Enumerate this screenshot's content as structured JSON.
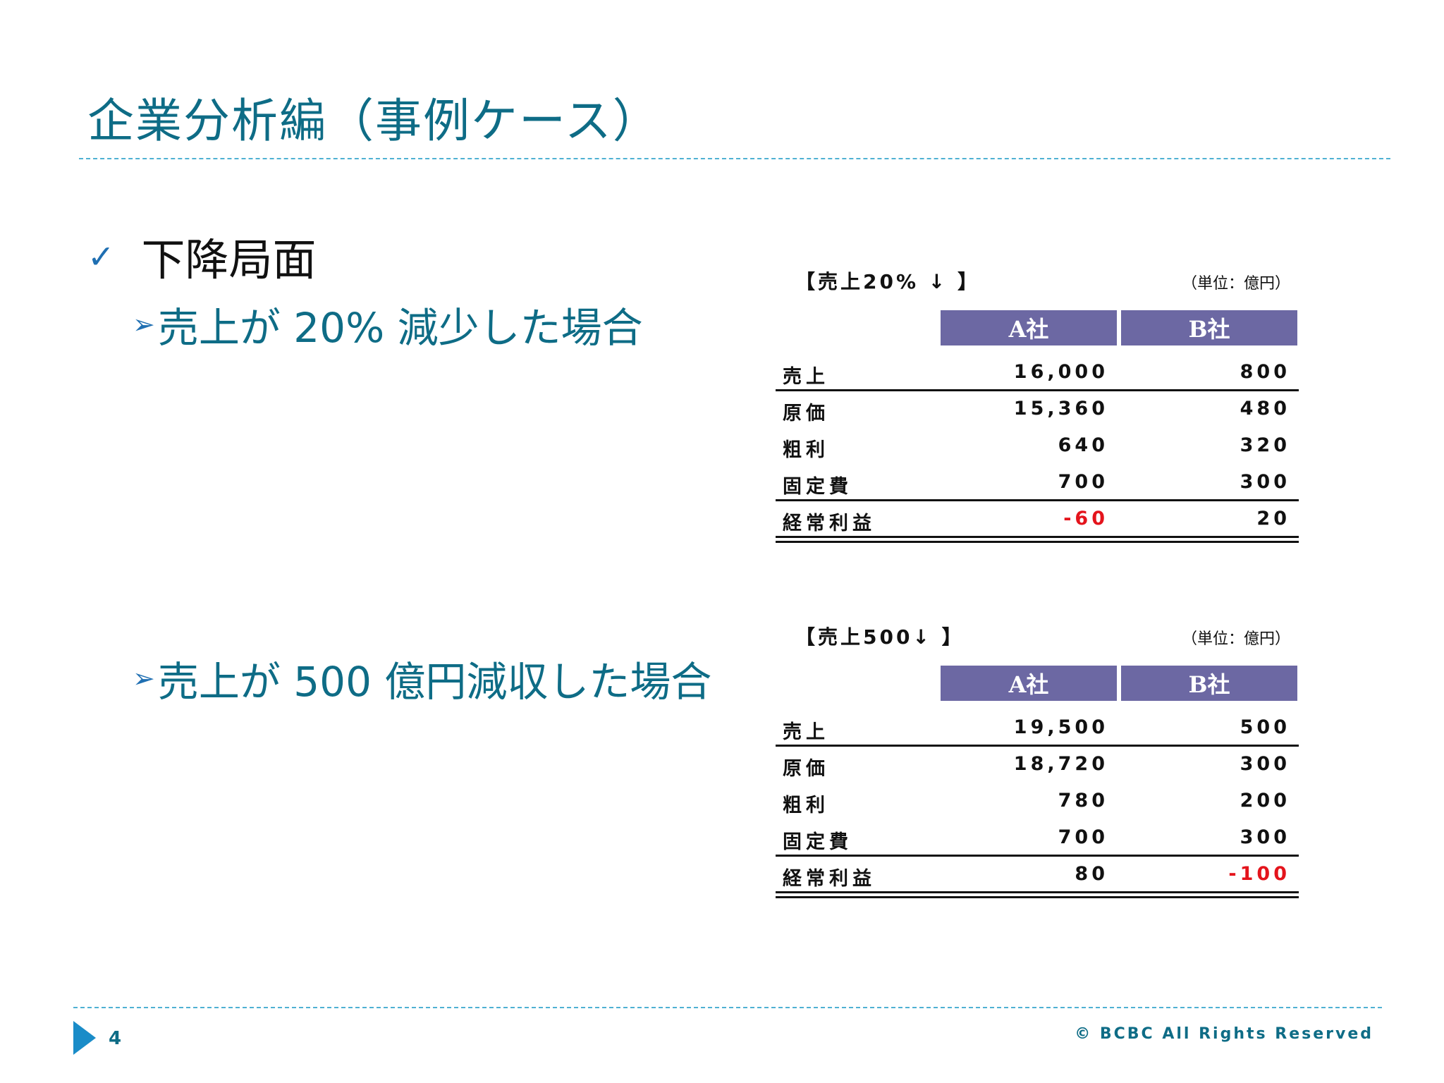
{
  "title": "企業分析編（事例ケース）",
  "main_bullet": {
    "icon": "check-icon",
    "text": "下降局面"
  },
  "sub_bullets": [
    {
      "icon": "arrow-right-icon",
      "text": "売上が 20%  減少した場合"
    },
    {
      "icon": "arrow-right-icon",
      "text": "売上が 500 億円減収した場合"
    }
  ],
  "tables": [
    {
      "caption": "【売上20% ↓ 】",
      "unit": "（単位：億円）",
      "columns": [
        "A社",
        "B社"
      ],
      "rows": [
        {
          "label": "売上",
          "a": "16,000",
          "b": "800"
        },
        {
          "label": "原価",
          "a": "15,360",
          "b": "480"
        },
        {
          "label": "粗利",
          "a": "640",
          "b": "320"
        },
        {
          "label": "固定費",
          "a": "700",
          "b": "300"
        },
        {
          "label": "経常利益",
          "a": "-60",
          "b": "20"
        }
      ]
    },
    {
      "caption": "【売上500↓ 】",
      "unit": "（単位：億円）",
      "columns": [
        "A社",
        "B社"
      ],
      "rows": [
        {
          "label": "売上",
          "a": "19,500",
          "b": "500"
        },
        {
          "label": "原価",
          "a": "18,720",
          "b": "300"
        },
        {
          "label": "粗利",
          "a": "780",
          "b": "200"
        },
        {
          "label": "固定費",
          "a": "700",
          "b": "300"
        },
        {
          "label": "経常利益",
          "a": "80",
          "b": "-100"
        }
      ]
    }
  ],
  "colors": {
    "title": "#0e6c86",
    "header_bg": "#6c68a3",
    "negative": "#e4141c",
    "accent": "#1a8cc8"
  },
  "footer": {
    "icon": "triangle-right-icon",
    "page_number": "4",
    "copyright": "© BCBC All Rights Reserved"
  }
}
